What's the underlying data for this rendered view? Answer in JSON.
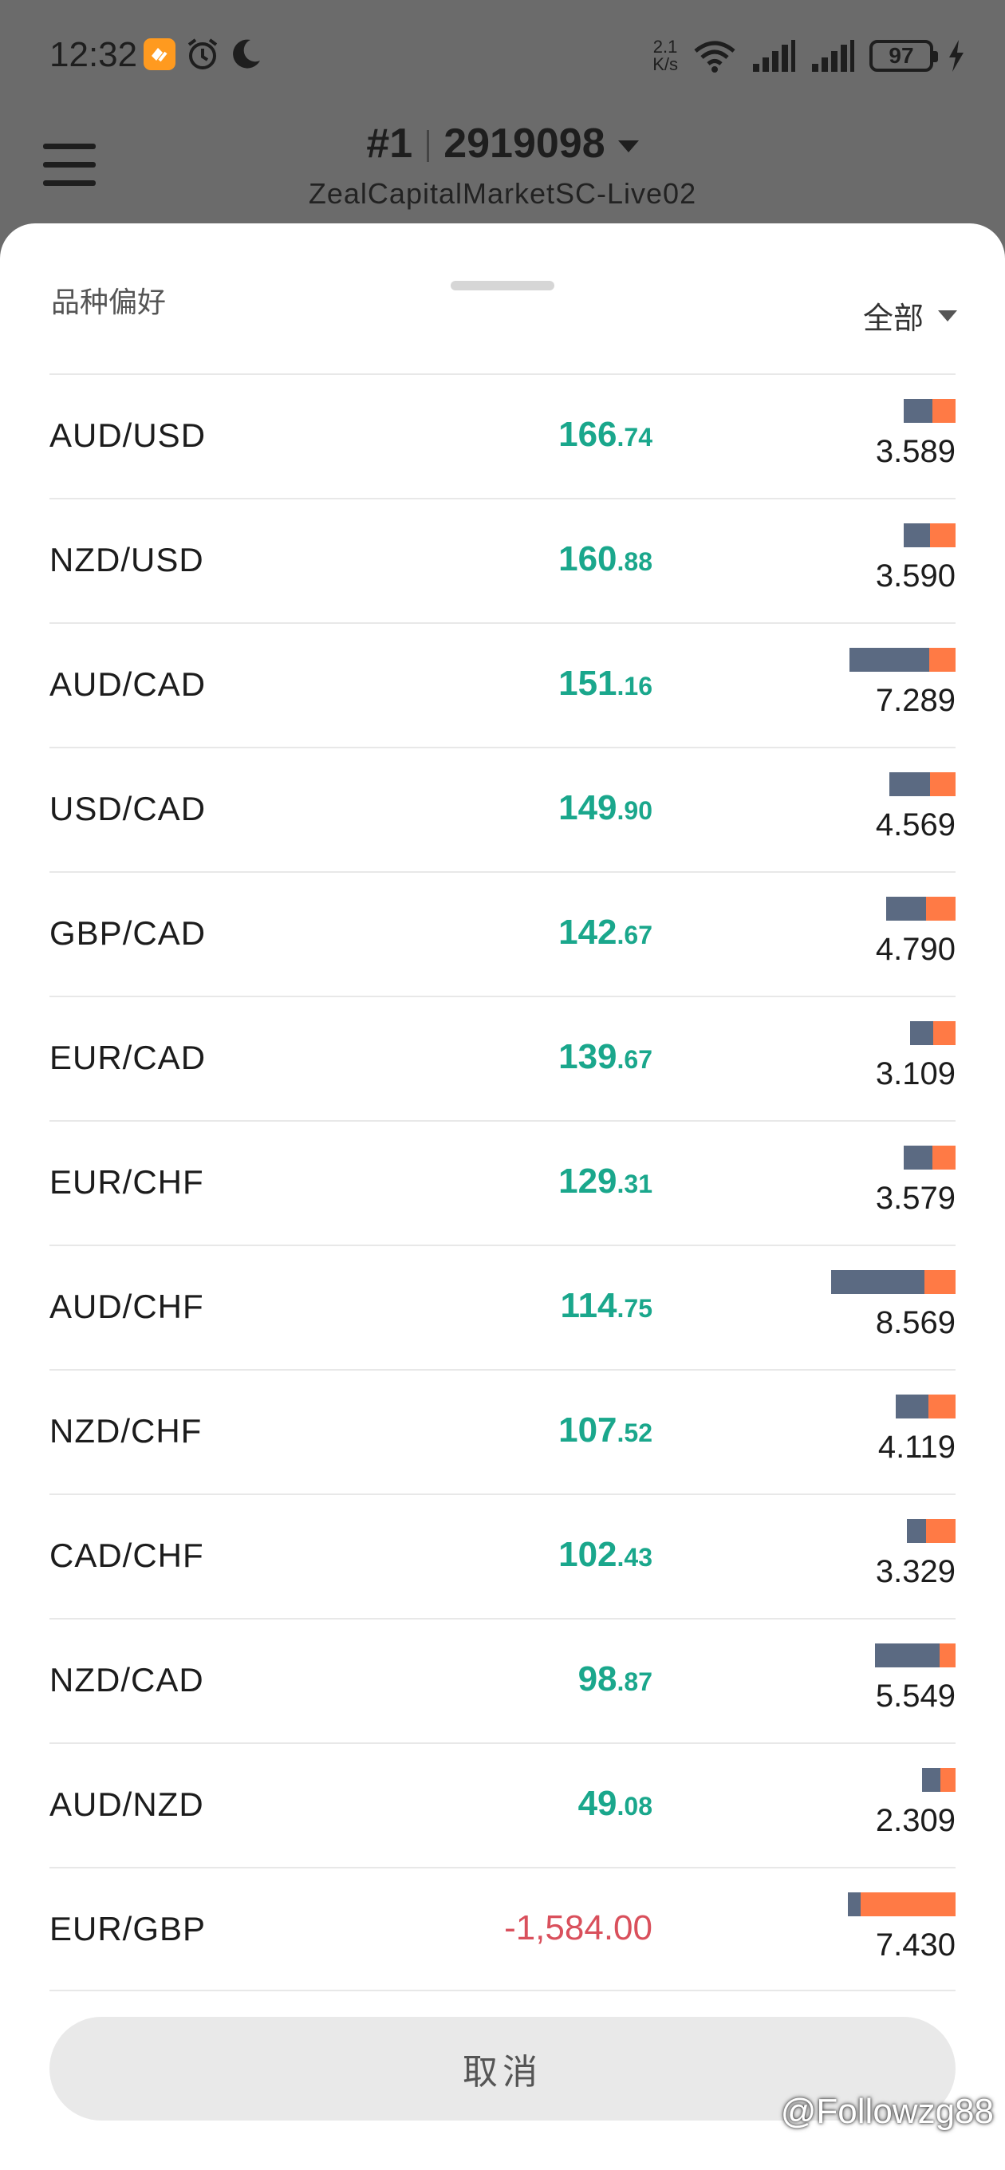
{
  "status_bar": {
    "time": "12:32",
    "net_speed_value": "2.1",
    "net_speed_unit": "K/s",
    "battery": "97"
  },
  "header": {
    "account_prefix": "#1",
    "account_number": "2919098",
    "server": "ZealCapitalMarketSC-Live02"
  },
  "sheet": {
    "title": "品种偏好",
    "filter_label": "全部",
    "cancel_label": "取消"
  },
  "rows": [
    {
      "pair": "AUD/USD",
      "profit_int": "166",
      "profit_frac": ".74",
      "value": "3.589",
      "buy_fraction": 0.55,
      "bar_total": 3.589
    },
    {
      "pair": "NZD/USD",
      "profit_int": "160",
      "profit_frac": ".88",
      "value": "3.590",
      "buy_fraction": 0.5,
      "bar_total": 3.59
    },
    {
      "pair": "AUD/CAD",
      "profit_int": "151",
      "profit_frac": ".16",
      "value": "7.289",
      "buy_fraction": 0.75,
      "bar_total": 7.289
    },
    {
      "pair": "USD/CAD",
      "profit_int": "149",
      "profit_frac": ".90",
      "value": "4.569",
      "buy_fraction": 0.62,
      "bar_total": 4.569
    },
    {
      "pair": "GBP/CAD",
      "profit_int": "142",
      "profit_frac": ".67",
      "value": "4.790",
      "buy_fraction": 0.58,
      "bar_total": 4.79
    },
    {
      "pair": "EUR/CAD",
      "profit_int": "139",
      "profit_frac": ".67",
      "value": "3.109",
      "buy_fraction": 0.5,
      "bar_total": 3.109
    },
    {
      "pair": "EUR/CHF",
      "profit_int": "129",
      "profit_frac": ".31",
      "value": "3.579",
      "buy_fraction": 0.55,
      "bar_total": 3.579
    },
    {
      "pair": "AUD/CHF",
      "profit_int": "114",
      "profit_frac": ".75",
      "value": "8.569",
      "buy_fraction": 0.75,
      "bar_total": 8.569
    },
    {
      "pair": "NZD/CHF",
      "profit_int": "107",
      "profit_frac": ".52",
      "value": "4.119",
      "buy_fraction": 0.55,
      "bar_total": 4.119
    },
    {
      "pair": "CAD/CHF",
      "profit_int": "102",
      "profit_frac": ".43",
      "value": "3.329",
      "buy_fraction": 0.4,
      "bar_total": 3.329
    },
    {
      "pair": "NZD/CAD",
      "profit_int": "98",
      "profit_frac": ".87",
      "value": "5.549",
      "buy_fraction": 0.8,
      "bar_total": 5.549
    },
    {
      "pair": "AUD/NZD",
      "profit_int": "49",
      "profit_frac": ".08",
      "value": "2.309",
      "buy_fraction": 0.55,
      "bar_total": 2.309
    },
    {
      "pair": "EUR/GBP",
      "profit_int": "-1,584",
      "profit_frac": ".00",
      "value": "7.430",
      "buy_fraction": 0.12,
      "bar_total": 7.43,
      "negative": true
    }
  ],
  "colors": {
    "positive": "#1aa78c",
    "negative": "#d9505c",
    "buy_bar": "#5b6a82",
    "sell_bar": "#ff7a45"
  },
  "watermark": "@Followzg88"
}
